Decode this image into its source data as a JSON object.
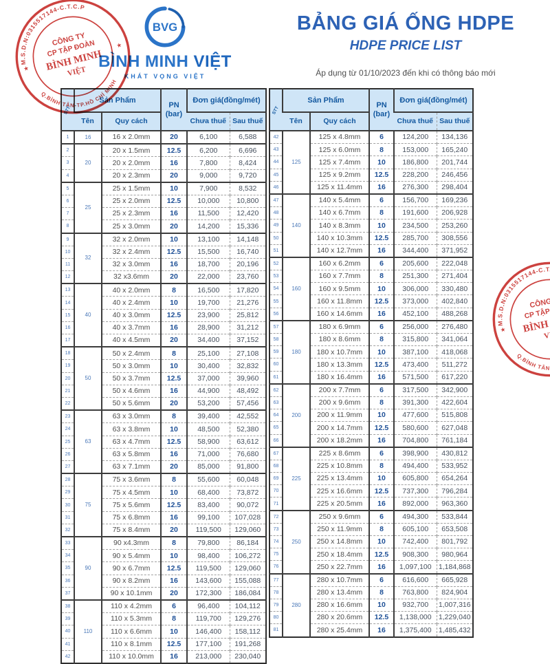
{
  "header": {
    "logo_text": "BVG",
    "brand_1": "BÌNH MINH",
    "brand_2": "VIỆT",
    "tagline": "KHÁT VỌNG VIỆT",
    "title": "BẢNG GIÁ ỐNG HDPE",
    "subtitle": "HDPE PRICE LIST",
    "effective_note": "Áp dụng từ 01/10/2023 đến khi có thông báo mới"
  },
  "stamp": {
    "ring_top_text": "M.S.D.N:0315517144-C.T.C.P",
    "ring_bottom_text": "Q.BÌNH TÂN-TP.HỒ CHÍ MINH",
    "star_left": "★",
    "star_right": "★",
    "line1": "CÔNG TY",
    "line2": "CP TẬP ĐOÀN",
    "line3": "BÌNH MINH",
    "line4": "VIỆT"
  },
  "colors": {
    "accent_blue": "#2d62b5",
    "logo_blue": "#2b74c8",
    "header_cell_bg": "#cfe5f7",
    "stamp_red": "#c8322e",
    "border_dark": "#3c3c3c"
  },
  "table_headers": {
    "stt": "STT",
    "product": "Sản Phẩm",
    "pn": "PN",
    "pn_unit": "(bar)",
    "price": "Đơn giá(đồng/mét)",
    "name": "Tên",
    "spec": "Quy cách",
    "pre_tax": "Chưa thuế",
    "post_tax": "Sau thuế"
  },
  "tables": {
    "left": [
      {
        "name": "16",
        "rows": [
          {
            "stt": "1",
            "spec": "16 x 2.0mm",
            "pn": "20",
            "pre": "6,100",
            "post": "6,588"
          }
        ]
      },
      {
        "name": "20",
        "rows": [
          {
            "stt": "2",
            "spec": "20 x 1.5mm",
            "pn": "12.5",
            "pre": "6,200",
            "post": "6,696"
          },
          {
            "stt": "3",
            "spec": "20 x 2.0mm",
            "pn": "16",
            "pre": "7,800",
            "post": "8,424"
          },
          {
            "stt": "4",
            "spec": "20 x 2.3mm",
            "pn": "20",
            "pre": "9,000",
            "post": "9,720"
          }
        ]
      },
      {
        "name": "25",
        "rows": [
          {
            "stt": "5",
            "spec": "25 x 1.5mm",
            "pn": "10",
            "pre": "7,900",
            "post": "8,532"
          },
          {
            "stt": "6",
            "spec": "25 x 2.0mm",
            "pn": "12.5",
            "pre": "10,000",
            "post": "10,800"
          },
          {
            "stt": "7",
            "spec": "25 x 2.3mm",
            "pn": "16",
            "pre": "11,500",
            "post": "12,420"
          },
          {
            "stt": "8",
            "spec": "25 x 3.0mm",
            "pn": "20",
            "pre": "14,200",
            "post": "15,336"
          }
        ]
      },
      {
        "name": "32",
        "rows": [
          {
            "stt": "9",
            "spec": "32 x 2.0mm",
            "pn": "10",
            "pre": "13,100",
            "post": "14,148"
          },
          {
            "stt": "10",
            "spec": "32 x 2.4mm",
            "pn": "12.5",
            "pre": "15,500",
            "post": "16,740"
          },
          {
            "stt": "11",
            "spec": "32 x 3.0mm",
            "pn": "16",
            "pre": "18,700",
            "post": "20,196"
          },
          {
            "stt": "12",
            "spec": "32 x3.6mm",
            "pn": "20",
            "pre": "22,000",
            "post": "23,760"
          }
        ]
      },
      {
        "name": "40",
        "rows": [
          {
            "stt": "13",
            "spec": "40 x 2.0mm",
            "pn": "8",
            "pre": "16,500",
            "post": "17,820"
          },
          {
            "stt": "14",
            "spec": "40 x 2.4mm",
            "pn": "10",
            "pre": "19,700",
            "post": "21,276"
          },
          {
            "stt": "15",
            "spec": "40 x 3.0mm",
            "pn": "12.5",
            "pre": "23,900",
            "post": "25,812"
          },
          {
            "stt": "16",
            "spec": "40 x 3.7mm",
            "pn": "16",
            "pre": "28,900",
            "post": "31,212"
          },
          {
            "stt": "17",
            "spec": "40 x 4.5mm",
            "pn": "20",
            "pre": "34,400",
            "post": "37,152"
          }
        ]
      },
      {
        "name": "50",
        "rows": [
          {
            "stt": "18",
            "spec": "50 x 2.4mm",
            "pn": "8",
            "pre": "25,100",
            "post": "27,108"
          },
          {
            "stt": "19",
            "spec": "50 x 3.0mm",
            "pn": "10",
            "pre": "30,400",
            "post": "32,832"
          },
          {
            "stt": "20",
            "spec": "50 x 3.7mm",
            "pn": "12.5",
            "pre": "37,000",
            "post": "39,960"
          },
          {
            "stt": "21",
            "spec": "50 x 4.6mm",
            "pn": "16",
            "pre": "44,900",
            "post": "48,492"
          },
          {
            "stt": "22",
            "spec": "50 x 5.6mm",
            "pn": "20",
            "pre": "53,200",
            "post": "57,456"
          }
        ]
      },
      {
        "name": "63",
        "rows": [
          {
            "stt": "23",
            "spec": "63 x 3.0mm",
            "pn": "8",
            "pre": "39,400",
            "post": "42,552"
          },
          {
            "stt": "24",
            "spec": "63 x 3.8mm",
            "pn": "10",
            "pre": "48,500",
            "post": "52,380"
          },
          {
            "stt": "25",
            "spec": "63 x 4.7mm",
            "pn": "12.5",
            "pre": "58,900",
            "post": "63,612"
          },
          {
            "stt": "26",
            "spec": "63 x 5.8mm",
            "pn": "16",
            "pre": "71,000",
            "post": "76,680"
          },
          {
            "stt": "27",
            "spec": "63 x 7.1mm",
            "pn": "20",
            "pre": "85,000",
            "post": "91,800"
          }
        ]
      },
      {
        "name": "75",
        "rows": [
          {
            "stt": "28",
            "spec": "75 x 3.6mm",
            "pn": "8",
            "pre": "55,600",
            "post": "60,048"
          },
          {
            "stt": "29",
            "spec": "75 x 4.5mm",
            "pn": "10",
            "pre": "68,400",
            "post": "73,872"
          },
          {
            "stt": "30",
            "spec": "75 x 5.6mm",
            "pn": "12.5",
            "pre": "83,400",
            "post": "90,072"
          },
          {
            "stt": "31",
            "spec": "75 x 6.8mm",
            "pn": "16",
            "pre": "99,100",
            "post": "107,028"
          },
          {
            "stt": "32",
            "spec": "75 x 8.4mm",
            "pn": "20",
            "pre": "119,500",
            "post": "129,060"
          }
        ]
      },
      {
        "name": "90",
        "rows": [
          {
            "stt": "33",
            "spec": "90 x4.3mm",
            "pn": "8",
            "pre": "79,800",
            "post": "86,184"
          },
          {
            "stt": "34",
            "spec": "90 x 5.4mm",
            "pn": "10",
            "pre": "98,400",
            "post": "106,272"
          },
          {
            "stt": "35",
            "spec": "90 x 6.7mm",
            "pn": "12.5",
            "pre": "119,500",
            "post": "129,060"
          },
          {
            "stt": "36",
            "spec": "90 x 8.2mm",
            "pn": "16",
            "pre": "143,600",
            "post": "155,088"
          },
          {
            "stt": "37",
            "spec": "90 x 10.1mm",
            "pn": "20",
            "pre": "172,300",
            "post": "186,084"
          }
        ]
      },
      {
        "name": "110",
        "rows": [
          {
            "stt": "38",
            "spec": "110 x 4.2mm",
            "pn": "6",
            "pre": "96,400",
            "post": "104,112"
          },
          {
            "stt": "39",
            "spec": "110 x 5.3mm",
            "pn": "8",
            "pre": "119,700",
            "post": "129,276"
          },
          {
            "stt": "40",
            "spec": "110 x 6.6mm",
            "pn": "10",
            "pre": "146,400",
            "post": "158,112"
          },
          {
            "stt": "41",
            "spec": "110 x 8.1mm",
            "pn": "12.5",
            "pre": "177,100",
            "post": "191,268"
          },
          {
            "stt": "42",
            "spec": "110 x 10.0mm",
            "pn": "16",
            "pre": "213,000",
            "post": "230,040"
          }
        ]
      }
    ],
    "right": [
      {
        "name": "125",
        "rows": [
          {
            "stt": "42",
            "spec": "125 x 4.8mm",
            "pn": "6",
            "pre": "124,200",
            "post": "134,136"
          },
          {
            "stt": "43",
            "spec": "125 x 6.0mm",
            "pn": "8",
            "pre": "153,000",
            "post": "165,240"
          },
          {
            "stt": "44",
            "spec": "125 x 7.4mm",
            "pn": "10",
            "pre": "186,800",
            "post": "201,744"
          },
          {
            "stt": "45",
            "spec": "125 x 9.2mm",
            "pn": "12.5",
            "pre": "228,200",
            "post": "246,456"
          },
          {
            "stt": "46",
            "spec": "125 x 11.4mm",
            "pn": "16",
            "pre": "276,300",
            "post": "298,404"
          }
        ]
      },
      {
        "name": "140",
        "rows": [
          {
            "stt": "47",
            "spec": "140 x 5.4mm",
            "pn": "6",
            "pre": "156,700",
            "post": "169,236"
          },
          {
            "stt": "48",
            "spec": "140 x 6.7mm",
            "pn": "8",
            "pre": "191,600",
            "post": "206,928"
          },
          {
            "stt": "49",
            "spec": "140 x 8.3mm",
            "pn": "10",
            "pre": "234,500",
            "post": "253,260"
          },
          {
            "stt": "50",
            "spec": "140 x 10.3mm",
            "pn": "12.5",
            "pre": "285,700",
            "post": "308,556"
          },
          {
            "stt": "51",
            "spec": "140 x 12.7mm",
            "pn": "16",
            "pre": "344,400",
            "post": "371,952"
          }
        ]
      },
      {
        "name": "160",
        "rows": [
          {
            "stt": "52",
            "spec": "160 x 6.2mm",
            "pn": "6",
            "pre": "205,600",
            "post": "222,048"
          },
          {
            "stt": "53",
            "spec": "160 x 7.7mm",
            "pn": "8",
            "pre": "251,300",
            "post": "271,404"
          },
          {
            "stt": "54",
            "spec": "160 x 9.5mm",
            "pn": "10",
            "pre": "306,000",
            "post": "330,480"
          },
          {
            "stt": "55",
            "spec": "160 x 11.8mm",
            "pn": "12.5",
            "pre": "373,000",
            "post": "402,840"
          },
          {
            "stt": "56",
            "spec": "160 x 14.6mm",
            "pn": "16",
            "pre": "452,100",
            "post": "488,268"
          }
        ]
      },
      {
        "name": "180",
        "rows": [
          {
            "stt": "57",
            "spec": "180 x 6.9mm",
            "pn": "6",
            "pre": "256,000",
            "post": "276,480"
          },
          {
            "stt": "58",
            "spec": "180 x 8.6mm",
            "pn": "8",
            "pre": "315,800",
            "post": "341,064"
          },
          {
            "stt": "59",
            "spec": "180 x 10.7mm",
            "pn": "10",
            "pre": "387,100",
            "post": "418,068"
          },
          {
            "stt": "60",
            "spec": "180 x 13.3mm",
            "pn": "12.5",
            "pre": "473,400",
            "post": "511,272"
          },
          {
            "stt": "61",
            "spec": "180 x 16.4mm",
            "pn": "16",
            "pre": "571,500",
            "post": "617,220"
          }
        ]
      },
      {
        "name": "200",
        "rows": [
          {
            "stt": "62",
            "spec": "200 x 7.7mm",
            "pn": "6",
            "pre": "317,500",
            "post": "342,900"
          },
          {
            "stt": "63",
            "spec": "200 x 9.6mm",
            "pn": "8",
            "pre": "391,300",
            "post": "422,604"
          },
          {
            "stt": "64",
            "spec": "200 x 11.9mm",
            "pn": "10",
            "pre": "477,600",
            "post": "515,808"
          },
          {
            "stt": "65",
            "spec": "200 x 14.7mm",
            "pn": "12.5",
            "pre": "580,600",
            "post": "627,048"
          },
          {
            "stt": "66",
            "spec": "200 x 18.2mm",
            "pn": "16",
            "pre": "704,800",
            "post": "761,184"
          }
        ]
      },
      {
        "name": "225",
        "rows": [
          {
            "stt": "67",
            "spec": "225 x 8.6mm",
            "pn": "6",
            "pre": "398,900",
            "post": "430,812"
          },
          {
            "stt": "68",
            "spec": "225 x 10.8mm",
            "pn": "8",
            "pre": "494,400",
            "post": "533,952"
          },
          {
            "stt": "69",
            "spec": "225 x 13.4mm",
            "pn": "10",
            "pre": "605,800",
            "post": "654,264"
          },
          {
            "stt": "70",
            "spec": "225 x 16.6mm",
            "pn": "12.5",
            "pre": "737,300",
            "post": "796,284"
          },
          {
            "stt": "71",
            "spec": "225 x 20.5mm",
            "pn": "16",
            "pre": "892,000",
            "post": "963,360"
          }
        ]
      },
      {
        "name": "250",
        "rows": [
          {
            "stt": "72",
            "spec": "250 x 9.6mm",
            "pn": "6",
            "pre": "494,300",
            "post": "533,844"
          },
          {
            "stt": "73",
            "spec": "250 x 11.9mm",
            "pn": "8",
            "pre": "605,100",
            "post": "653,508"
          },
          {
            "stt": "74",
            "spec": "250 x 14.8mm",
            "pn": "10",
            "pre": "742,400",
            "post": "801,792"
          },
          {
            "stt": "75",
            "spec": "250 x 18.4mm",
            "pn": "12.5",
            "pre": "908,300",
            "post": "980,964"
          },
          {
            "stt": "76",
            "spec": "250 x 22.7mm",
            "pn": "16",
            "pre": "1,097,100",
            "post": "1,184,868"
          }
        ]
      },
      {
        "name": "280",
        "rows": [
          {
            "stt": "77",
            "spec": "280 x 10.7mm",
            "pn": "6",
            "pre": "616,600",
            "post": "665,928"
          },
          {
            "stt": "78",
            "spec": "280 x 13.4mm",
            "pn": "8",
            "pre": "763,800",
            "post": "824,904"
          },
          {
            "stt": "79",
            "spec": "280 x 16.6mm",
            "pn": "10",
            "pre": "932,700",
            "post": "1,007,316"
          },
          {
            "stt": "80",
            "spec": "280 x 20.6mm",
            "pn": "12.5",
            "pre": "1,138,000",
            "post": "1,229,040"
          },
          {
            "stt": "81",
            "spec": "280 x 25.4mm",
            "pn": "16",
            "pre": "1,375,400",
            "post": "1,485,432"
          }
        ]
      }
    ]
  }
}
